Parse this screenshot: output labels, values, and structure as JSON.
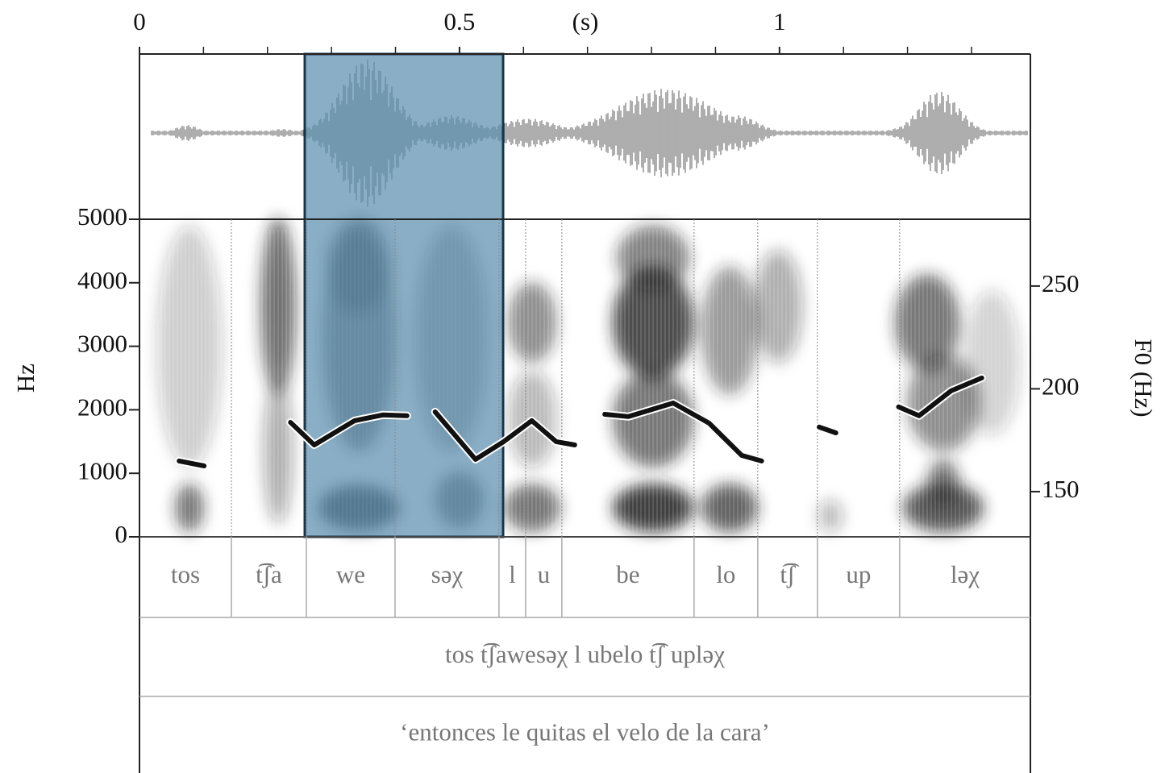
{
  "chart_data": {
    "type": "line",
    "xlabel": "(s)",
    "ylabel": "Hz",
    "y2label": "F0 (Hz)",
    "xlim": [
      0,
      1.392
    ],
    "xticks": [
      0,
      0.5,
      1
    ],
    "xminor_ticks": [
      0.1,
      0.2,
      0.3,
      0.4,
      0.6,
      0.7,
      0.8,
      0.9,
      1.1,
      1.2,
      1.3
    ],
    "ylim": [
      0,
      5000
    ],
    "yticks": [
      0,
      1000,
      2000,
      3000,
      4000,
      5000
    ],
    "y2lim": [
      128,
      282.5
    ],
    "y2ticks": [
      150,
      200,
      250
    ],
    "x": [
      0.062,
      0.101,
      null,
      0.236,
      0.273,
      0.336,
      0.38,
      0.418,
      null,
      0.462,
      0.525,
      0.569,
      0.613,
      0.651,
      0.68,
      null,
      0.727,
      0.764,
      0.834,
      0.89,
      0.941,
      0.972,
      null,
      1.062,
      1.088,
      null,
      1.186,
      1.218,
      1.268,
      1.316
    ],
    "series": [
      {
        "color": "#111111",
        "axis": "y2",
        "values": [
          164.9,
          162.5,
          null,
          183.7,
          172.7,
          184.5,
          187.3,
          186.9,
          null,
          188.8,
          165.7,
          174.3,
          184.5,
          174.3,
          172.7,
          null,
          187.6,
          186.5,
          193.1,
          183.3,
          167.6,
          164.9,
          null,
          181.4,
          178.6,
          null,
          191.2,
          186.9,
          199,
          205.3
        ]
      }
    ],
    "tiers": [
      {
        "intervals": [
          "tos",
          "t͡ʃa",
          "we",
          "səχ",
          "l",
          "u",
          "be",
          "lo",
          "t͡ʃ",
          "up",
          "ləχ"
        ],
        "boundaries": [
          0.1436,
          0.2607,
          0.3993,
          0.5617,
          0.6033,
          0.6599,
          0.8665,
          0.966,
          1.0592,
          1.1877
        ]
      },
      {
        "intervals": [
          "tos t͡ʃawesəχ l ubelo t͡ʃ upləχ"
        ],
        "boundaries": []
      },
      {
        "intervals": [
          "‘entonces le quitas el velo de la cara’"
        ],
        "boundaries": []
      }
    ]
  }
}
